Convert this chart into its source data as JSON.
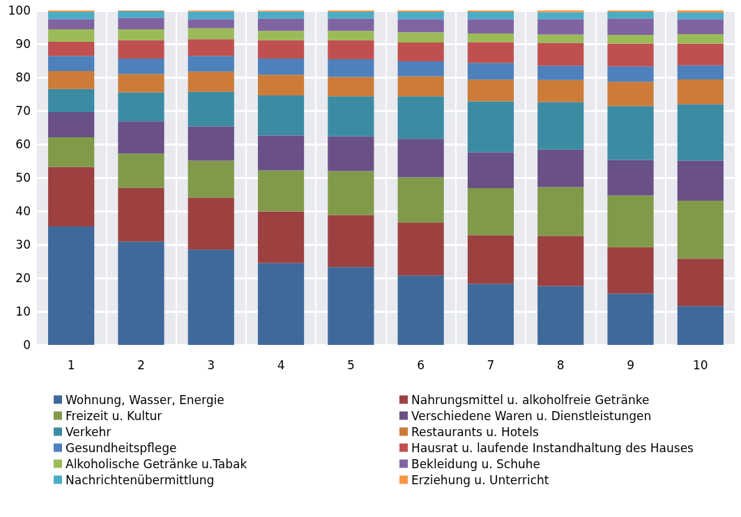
{
  "chart_data": {
    "type": "bar",
    "stacked": true,
    "categories": [
      "1",
      "2",
      "3",
      "4",
      "5",
      "6",
      "7",
      "8",
      "9",
      "10"
    ],
    "ylim": [
      0,
      100
    ],
    "yticks": [
      0,
      10,
      20,
      30,
      40,
      50,
      60,
      70,
      80,
      90,
      100
    ],
    "grid": true,
    "legend": "bottom",
    "series": [
      {
        "name": "Wohnung, Wasser, Energie",
        "color": "#3f699a",
        "values": [
          35.4,
          30.9,
          28.5,
          24.5,
          23.3,
          20.8,
          18.3,
          17.6,
          15.3,
          11.6
        ]
      },
      {
        "name": "Nahrungsmittel u. alkoholfreie Getränke",
        "color": "#9c4140",
        "values": [
          17.8,
          16.1,
          15.5,
          15.4,
          15.5,
          15.8,
          14.5,
          15.0,
          13.9,
          14.2
        ]
      },
      {
        "name": "Freizeit u. Kultur",
        "color": "#809a4a",
        "values": [
          8.9,
          10.2,
          11.1,
          12.3,
          13.2,
          13.5,
          14.1,
          14.6,
          15.5,
          17.3
        ]
      },
      {
        "name": "Verschiedene Waren u. Dienstleistungen",
        "color": "#695086",
        "values": [
          7.5,
          9.6,
          10.2,
          10.4,
          10.4,
          11.5,
          10.7,
          11.2,
          10.6,
          12.0
        ]
      },
      {
        "name": "Verkehr",
        "color": "#3b8ba3",
        "values": [
          6.9,
          8.7,
          10.4,
          12.0,
          11.9,
          12.7,
          15.2,
          14.2,
          16.1,
          16.9
        ]
      },
      {
        "name": "Restaurants u. Hotels",
        "color": "#cc7b38",
        "values": [
          5.4,
          5.5,
          6.0,
          6.2,
          5.8,
          6.0,
          6.5,
          6.6,
          7.3,
          7.4
        ]
      },
      {
        "name": "Gesundheitspflege",
        "color": "#4e80bb",
        "values": [
          4.5,
          4.6,
          4.7,
          4.8,
          5.3,
          4.5,
          5.0,
          4.3,
          4.6,
          4.2
        ]
      },
      {
        "name": "Hausrat u. laufende Instandhaltung des Hauses",
        "color": "#c0504f",
        "values": [
          4.2,
          5.5,
          5.0,
          5.5,
          5.7,
          5.6,
          6.2,
          6.8,
          6.8,
          6.5
        ]
      },
      {
        "name": "Alkoholische Getränke u.Tabak",
        "color": "#9bbb59",
        "values": [
          3.8,
          3.3,
          3.3,
          2.8,
          2.8,
          3.1,
          2.6,
          2.5,
          2.6,
          2.8
        ]
      },
      {
        "name": "Bekleidung u. Schuhe",
        "color": "#8064a1",
        "values": [
          3.0,
          3.4,
          2.7,
          3.7,
          3.7,
          3.9,
          4.3,
          4.6,
          4.9,
          4.5
        ]
      },
      {
        "name": "Nachrichtenübermittlung",
        "color": "#4bacc6",
        "values": [
          2.2,
          2.0,
          2.3,
          2.1,
          2.0,
          2.2,
          2.2,
          2.1,
          2.0,
          2.0
        ]
      },
      {
        "name": "Erziehung u. Unterricht",
        "color": "#f79646",
        "values": [
          0.4,
          0.2,
          0.3,
          0.3,
          0.4,
          0.4,
          0.4,
          0.5,
          0.4,
          0.6
        ]
      }
    ]
  }
}
